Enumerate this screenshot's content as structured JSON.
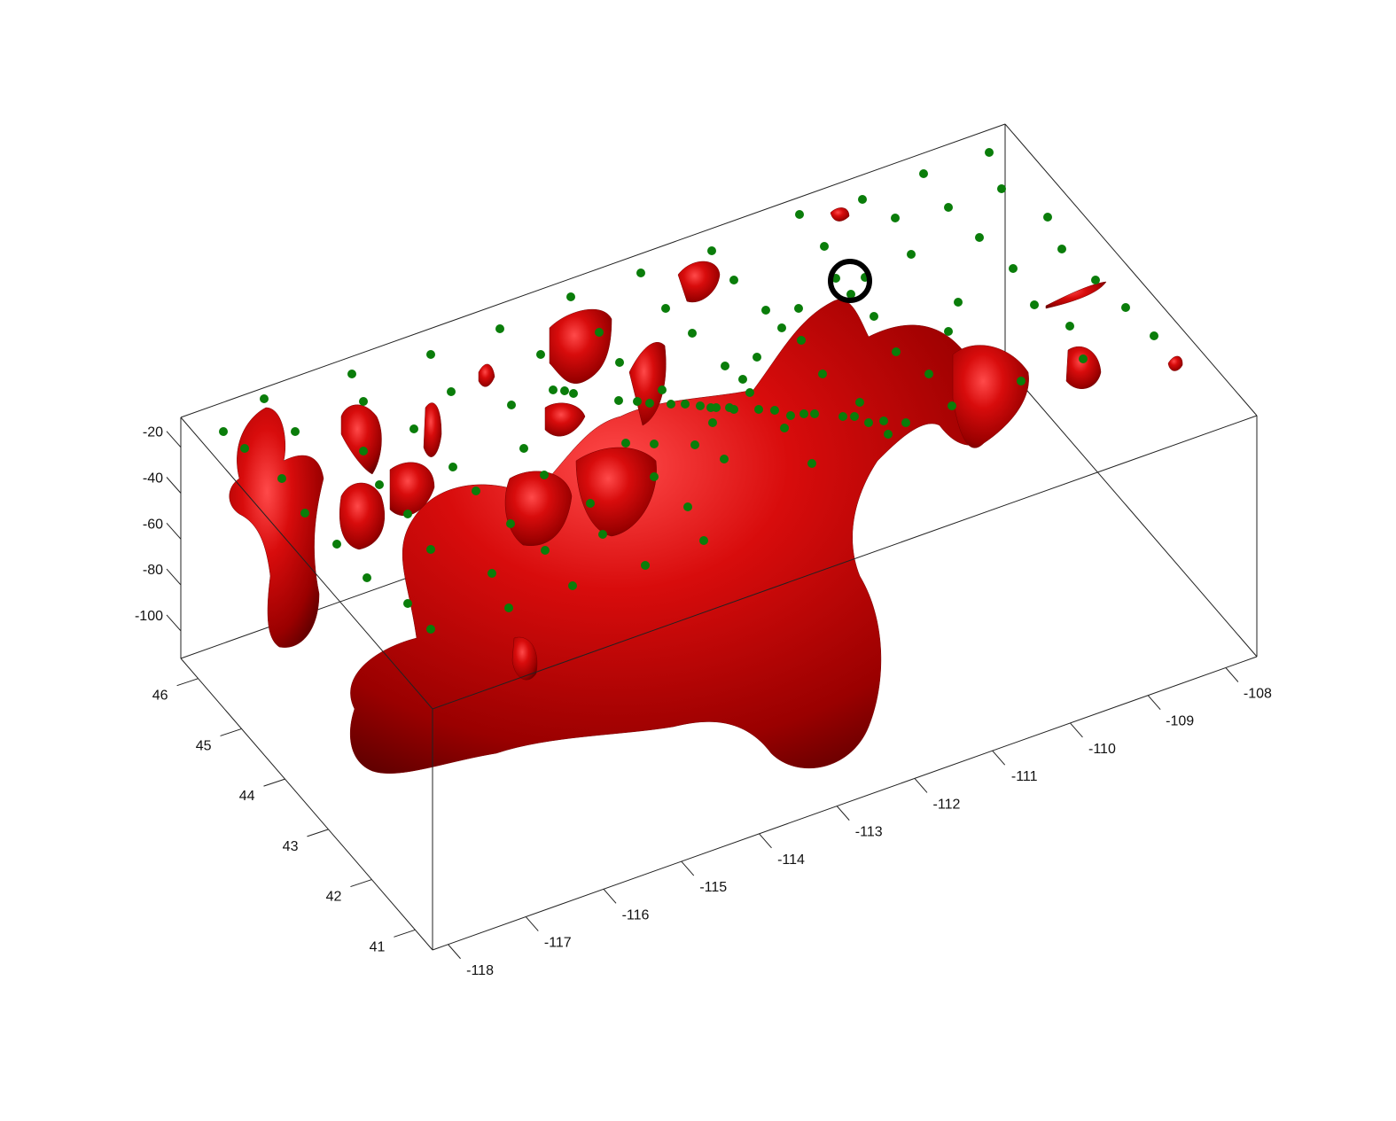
{
  "chart_data": {
    "type": "3d-isosurface-scatter",
    "title": "",
    "xlabel": "",
    "ylabel": "",
    "zlabel": "",
    "x_ticks": [
      -118,
      -117,
      -116,
      -115,
      -114,
      -113,
      -112,
      -111,
      -110,
      -109,
      -108
    ],
    "y_ticks": [
      41,
      42,
      43,
      44,
      45,
      46
    ],
    "z_ticks": [
      -20,
      -40,
      -60,
      -80,
      -100
    ],
    "xlim": [
      -118.2,
      -107.6
    ],
    "ylim": [
      40.6,
      46.4
    ],
    "zlim": [
      -112,
      -7
    ],
    "grid": false,
    "box": true,
    "colors": {
      "isosurface": "#c80000",
      "points": "#0a7d0a",
      "highlight_circle": "#000000",
      "axes": "#222222"
    },
    "highlight_marker": "black-circle"
  }
}
